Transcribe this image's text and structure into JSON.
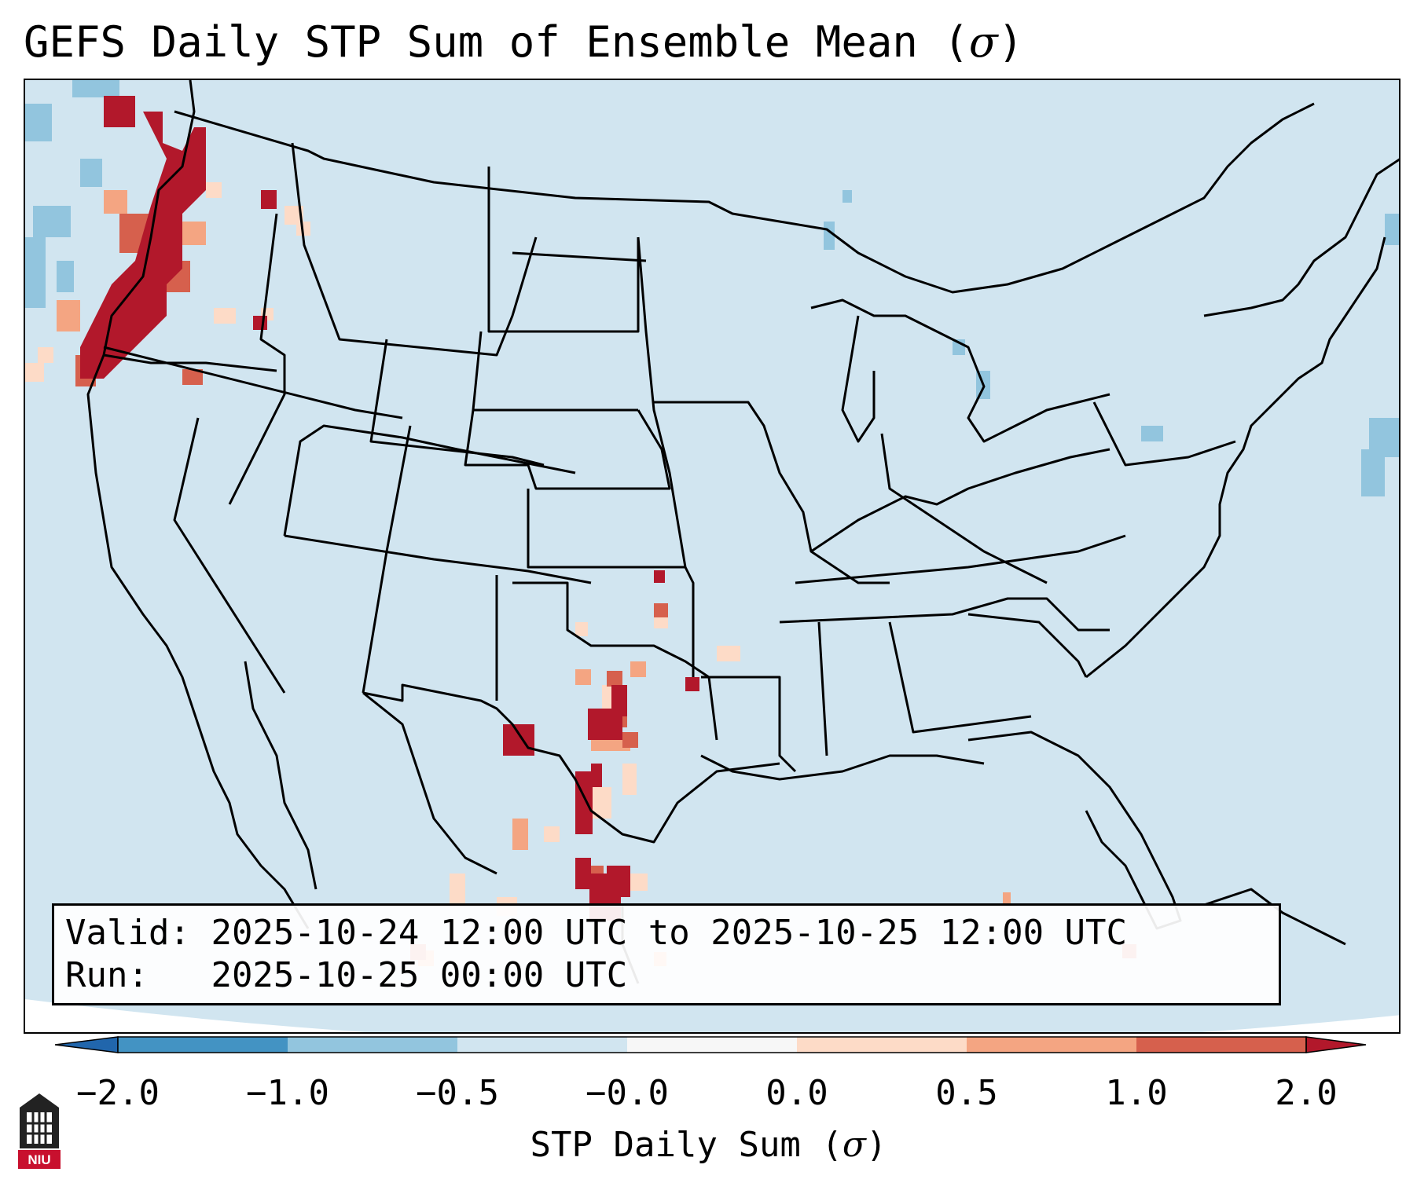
{
  "title": "GEFS Daily STP Sum of Ensemble Mean (",
  "title_symbol": "σ",
  "title_end": ")",
  "info": {
    "valid_label": "Valid:",
    "valid_value": "2025-10-24 12:00 UTC to 2025-10-25 12:00 UTC",
    "run_label": "Run:",
    "run_value": "2025-10-25 00:00 UTC"
  },
  "colorbar": {
    "ticks": [
      "−2.0",
      "−1.0",
      "−0.5",
      "−0.0",
      "0.0",
      "0.5",
      "1.0",
      "2.0"
    ],
    "label": "STP Daily Sum (",
    "label_symbol": "σ",
    "label_end": ")",
    "colors": [
      "#2166ac",
      "#4393c3",
      "#92c5de",
      "#d1e5f0",
      "#f7f7f7",
      "#fddbc7",
      "#f4a582",
      "#d6604d",
      "#b2182b"
    ]
  },
  "map": {
    "background_color": "#d1e5f0"
  },
  "logo": {
    "text": "NIU"
  }
}
